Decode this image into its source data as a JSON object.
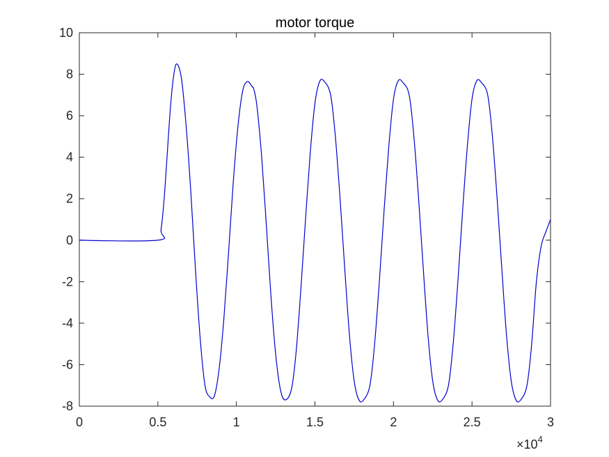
{
  "chart_data": {
    "type": "line",
    "title": "motor torque",
    "xlabel": "",
    "ylabel": "",
    "xlim": [
      0,
      30000
    ],
    "ylim": [
      -8,
      10
    ],
    "x_ticks": [
      0,
      5000,
      10000,
      15000,
      20000,
      25000,
      30000
    ],
    "x_tick_labels": [
      "0",
      "0.5",
      "1",
      "1.5",
      "2",
      "2.5",
      "3"
    ],
    "y_ticks": [
      -8,
      -6,
      -4,
      -2,
      0,
      2,
      4,
      6,
      8,
      10
    ],
    "y_tick_labels": [
      "-8",
      "-6",
      "-4",
      "-2",
      "0",
      "2",
      "4",
      "6",
      "8",
      "10"
    ],
    "x_exponent": {
      "base": "×10",
      "power": "4"
    },
    "grid": false,
    "line_color": "#0000cc",
    "series": [
      {
        "x": [
          0,
          5000,
          5200,
          5400,
          5600,
          5800,
          6000,
          6200,
          6500,
          6800,
          7100,
          7400,
          7700,
          8000,
          8300,
          8600,
          8900,
          9200,
          9500,
          9800,
          10100,
          10400,
          10700,
          11000,
          11100,
          11300,
          11600,
          11900,
          12200,
          12500,
          12800,
          13100,
          13500,
          13800,
          14100,
          14400,
          14700,
          15000,
          15300,
          15600,
          16000,
          16300,
          16600,
          16900,
          17200,
          17500,
          17800,
          18100,
          18500,
          18800,
          19100,
          19400,
          19700,
          20000,
          20300,
          20600,
          21000,
          21300,
          21600,
          21900,
          22200,
          22500,
          22800,
          23100,
          23500,
          23800,
          24100,
          24400,
          24700,
          25000,
          25300,
          25600,
          26000,
          26300,
          26600,
          26900,
          27200,
          27500,
          27800,
          28100,
          28500,
          28800,
          29100,
          29400,
          29700,
          30000
        ],
        "values": [
          0,
          0,
          0.5,
          2.0,
          4.2,
          6.4,
          7.9,
          8.5,
          7.8,
          5.5,
          2.3,
          -1.5,
          -4.8,
          -7.0,
          -7.55,
          -7.5,
          -6.2,
          -3.8,
          -0.6,
          2.8,
          5.5,
          7.2,
          7.65,
          7.4,
          7.3,
          6.5,
          4.1,
          0.8,
          -2.7,
          -5.5,
          -7.2,
          -7.7,
          -7.2,
          -5.4,
          -2.4,
          1.0,
          4.2,
          6.6,
          7.65,
          7.65,
          7.0,
          5.0,
          2.0,
          -1.4,
          -4.6,
          -6.8,
          -7.7,
          -7.7,
          -7.0,
          -5.0,
          -2.0,
          1.4,
          4.5,
          6.8,
          7.68,
          7.6,
          7.0,
          5.0,
          2.0,
          -1.4,
          -4.6,
          -6.8,
          -7.7,
          -7.7,
          -7.0,
          -5.0,
          -2.0,
          1.4,
          4.5,
          6.8,
          7.68,
          7.6,
          7.0,
          5.0,
          2.0,
          -1.4,
          -4.6,
          -6.8,
          -7.7,
          -7.7,
          -7.0,
          -5.0,
          -2.0,
          -0.3,
          0.4,
          1.0
        ]
      }
    ]
  }
}
